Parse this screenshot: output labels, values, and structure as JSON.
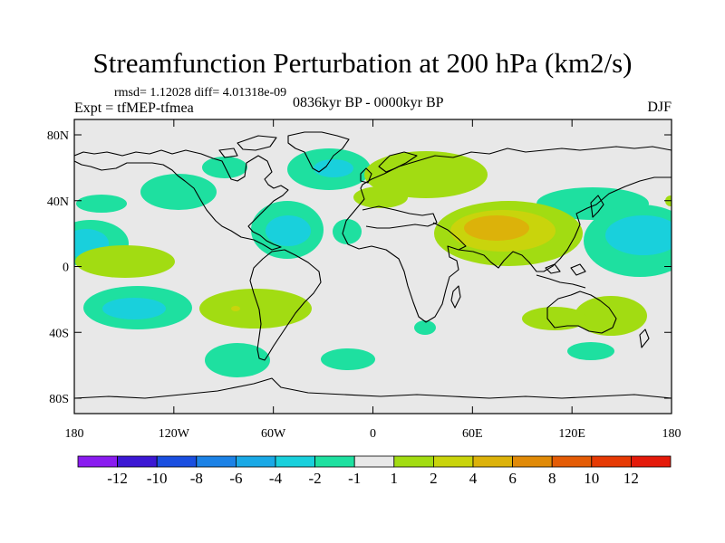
{
  "title": "Streamfunction Perturbation at 200 hPa (km2/s)",
  "stats": "rmsd= 1.12028 diff= 4.01318e-09",
  "experiment": "Expt = tfMEP-tfmea",
  "period": "0836kyr BP - 0000kyr BP",
  "season": "DJF",
  "axes": {
    "lat_ticks": [
      "80N",
      "40N",
      "0",
      "40S",
      "80S"
    ],
    "lon_ticks": [
      "180",
      "120W",
      "60W",
      "0",
      "60E",
      "120E",
      "180"
    ]
  },
  "colorbar": {
    "labels": [
      "-12",
      "-10",
      "-8",
      "-6",
      "-4",
      "-2",
      "-1",
      "1",
      "2",
      "4",
      "6",
      "8",
      "10",
      "12"
    ],
    "colors": [
      "#8a1cf0",
      "#3c18d4",
      "#1a4fe0",
      "#1c82e6",
      "#1aa9e6",
      "#19d0dc",
      "#1ee0a0",
      "#e8e8e8",
      "#a2dc12",
      "#c9d40c",
      "#dcb20a",
      "#e08a08",
      "#e45c06",
      "#e63a04",
      "#e41a0a"
    ]
  },
  "background_color": "#e8e8e8"
}
